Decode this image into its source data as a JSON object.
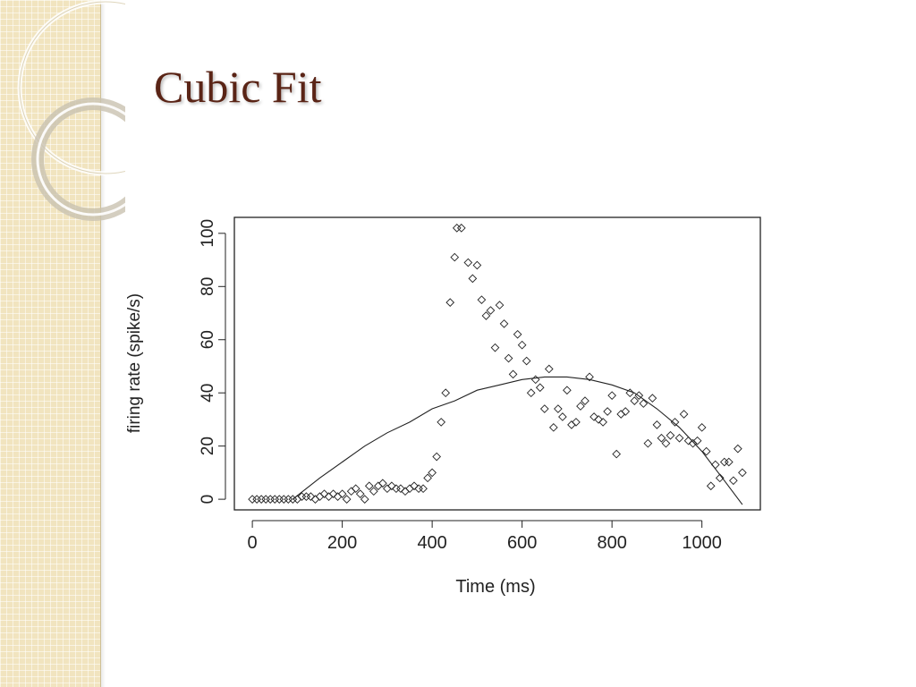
{
  "slide": {
    "title": "Cubic Fit"
  },
  "colors": {
    "strip": "#f1e4bf",
    "title": "#5a2416",
    "ink": "#222222"
  },
  "chart_data": {
    "type": "scatter",
    "title": "",
    "xlabel": "Time (ms)",
    "ylabel": "firing rate (spike/s)",
    "xlim": [
      -40,
      1130
    ],
    "ylim": [
      -4,
      106
    ],
    "xticks": [
      0,
      200,
      400,
      600,
      800,
      1000
    ],
    "yticks": [
      0,
      20,
      40,
      60,
      80,
      100
    ],
    "points": [
      [
        0,
        0
      ],
      [
        10,
        0
      ],
      [
        20,
        0
      ],
      [
        30,
        0
      ],
      [
        40,
        0
      ],
      [
        50,
        0
      ],
      [
        60,
        0
      ],
      [
        70,
        0
      ],
      [
        80,
        0
      ],
      [
        90,
        0
      ],
      [
        100,
        0
      ],
      [
        110,
        1
      ],
      [
        120,
        1
      ],
      [
        130,
        1
      ],
      [
        140,
        0
      ],
      [
        150,
        1
      ],
      [
        160,
        2
      ],
      [
        170,
        1
      ],
      [
        180,
        2
      ],
      [
        190,
        1
      ],
      [
        200,
        2
      ],
      [
        210,
        0
      ],
      [
        220,
        3
      ],
      [
        230,
        4
      ],
      [
        240,
        2
      ],
      [
        250,
        0
      ],
      [
        260,
        5
      ],
      [
        270,
        3
      ],
      [
        280,
        5
      ],
      [
        290,
        6
      ],
      [
        300,
        4
      ],
      [
        310,
        5
      ],
      [
        320,
        4
      ],
      [
        330,
        4
      ],
      [
        340,
        3
      ],
      [
        350,
        4
      ],
      [
        360,
        5
      ],
      [
        370,
        4
      ],
      [
        380,
        4
      ],
      [
        390,
        8
      ],
      [
        400,
        10
      ],
      [
        410,
        16
      ],
      [
        420,
        29
      ],
      [
        430,
        40
      ],
      [
        440,
        74
      ],
      [
        450,
        91
      ],
      [
        455,
        102
      ],
      [
        465,
        102
      ],
      [
        480,
        89
      ],
      [
        490,
        83
      ],
      [
        500,
        88
      ],
      [
        510,
        75
      ],
      [
        520,
        69
      ],
      [
        530,
        71
      ],
      [
        540,
        57
      ],
      [
        550,
        73
      ],
      [
        560,
        66
      ],
      [
        570,
        53
      ],
      [
        580,
        47
      ],
      [
        590,
        62
      ],
      [
        600,
        58
      ],
      [
        610,
        52
      ],
      [
        620,
        40
      ],
      [
        630,
        45
      ],
      [
        640,
        42
      ],
      [
        650,
        34
      ],
      [
        660,
        49
      ],
      [
        670,
        27
      ],
      [
        680,
        34
      ],
      [
        690,
        31
      ],
      [
        700,
        41
      ],
      [
        710,
        28
      ],
      [
        720,
        29
      ],
      [
        730,
        35
      ],
      [
        740,
        37
      ],
      [
        750,
        46
      ],
      [
        760,
        31
      ],
      [
        770,
        30
      ],
      [
        780,
        29
      ],
      [
        790,
        33
      ],
      [
        800,
        39
      ],
      [
        810,
        17
      ],
      [
        820,
        32
      ],
      [
        830,
        33
      ],
      [
        840,
        40
      ],
      [
        850,
        37
      ],
      [
        860,
        39
      ],
      [
        870,
        36
      ],
      [
        880,
        21
      ],
      [
        890,
        38
      ],
      [
        900,
        28
      ],
      [
        910,
        23
      ],
      [
        920,
        21
      ],
      [
        930,
        24
      ],
      [
        940,
        29
      ],
      [
        950,
        23
      ],
      [
        960,
        32
      ],
      [
        970,
        22
      ],
      [
        980,
        21
      ],
      [
        990,
        22
      ],
      [
        1000,
        27
      ],
      [
        1010,
        18
      ],
      [
        1020,
        5
      ],
      [
        1030,
        13
      ],
      [
        1040,
        8
      ],
      [
        1050,
        14
      ],
      [
        1060,
        14
      ],
      [
        1070,
        7
      ],
      [
        1080,
        19
      ],
      [
        1090,
        10
      ]
    ],
    "series": [
      {
        "type": "line",
        "x": [
          90,
          150,
          200,
          250,
          300,
          350,
          400,
          450,
          500,
          550,
          600,
          650,
          700,
          750,
          800,
          850,
          900,
          950,
          1000,
          1050,
          1090
        ],
        "y": [
          0,
          8,
          14,
          20,
          25,
          29,
          34,
          37,
          41,
          43,
          45,
          46,
          46,
          45,
          43,
          40,
          34,
          27,
          18,
          7,
          -2
        ]
      }
    ],
    "grid": false,
    "legend": "none",
    "marker": "diamond-open"
  }
}
